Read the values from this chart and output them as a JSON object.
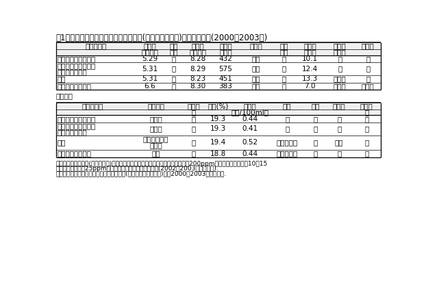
{
  "title": "表1　「オリエンタルスター」の育成地(広島県安芸津町)における特性(2000～2003年)",
  "t1_h1": [
    "品種・系統",
    "開花期",
    "花振",
    "収穫期",
    "果房重",
    "果房形",
    "着粒",
    "果粒重",
    "はく皮",
    "裂果性"
  ],
  "t1_h2": [
    "",
    "（月日）",
    "るい",
    "（月日）",
    "（ｇ）",
    "",
    "密度",
    "（ｇ）",
    "の難易",
    ""
  ],
  "t1_data": [
    [
      "オリエンタルスター",
      "5.29",
      "少",
      "8.28",
      "432",
      "円筒",
      "中",
      "10.1",
      "中",
      "無"
    ],
    [
      "オリエンタルスター\n（無核化栽培）",
      "5.31",
      "少",
      "8.29",
      "575",
      "円筒",
      "中",
      "12.4",
      "中",
      "無"
    ],
    [
      "巨峰",
      "5.31",
      "中",
      "8.23",
      "451",
      "円筒",
      "密",
      "13.3",
      "易～中",
      "無"
    ],
    [
      "ネオ・マスカット",
      "6.6",
      "少",
      "8.30",
      "383",
      "円筒",
      "密",
      "7.0",
      "易～中",
      "無～中"
    ]
  ],
  "t1_col_widths": [
    110,
    38,
    28,
    38,
    38,
    45,
    32,
    40,
    42,
    35
  ],
  "t2_label": "（続き）",
  "t2_h1": [
    "品種・系統",
    "果肉特性",
    "果肉硬",
    "糖度(%)",
    "酸含量",
    "香気",
    "渋み",
    "脱粒性",
    "日持ち"
  ],
  "t2_h2": [
    "",
    "",
    "度",
    "",
    "（ｇ/100ml）",
    "",
    "",
    "",
    "性"
  ],
  "t2_data": [
    [
      "オリエンタルスター",
      "崩壊性",
      "硬",
      "19.3",
      "0.44",
      "無",
      "無",
      "中",
      "中"
    ],
    [
      "オリエンタルスター\n（無核化栽培）",
      "崩壊性",
      "硬",
      "19.3",
      "0.41",
      "無",
      "無",
      "中",
      "中"
    ],
    [
      "巨峰",
      "崩壊性と塊状\nの中間",
      "中",
      "19.4",
      "0.52",
      "フォクシー",
      "無",
      "容易",
      "短"
    ],
    [
      "ネオ・マスカット",
      "塊状",
      "中",
      "18.8",
      "0.44",
      "マスカット",
      "無",
      "中",
      "中"
    ]
  ],
  "t2_col_widths": [
    110,
    78,
    34,
    40,
    55,
    55,
    30,
    40,
    42
  ],
  "footnote1": "オリエンタルスター(無核化栽培)は短梢剪定樹で、開花前にストレプトマイシン200ppm散布、満開時と満開10～15",
  "footnote2": "日後にジベレリン25ppmで花（果）房浸漬処理を行った(2002～2003年の平均値).",
  "footnote3": "その他はいずれも長梢剪定による有核栽培(ジベレリン等無処理)で、2000～2003年の平均値.",
  "bg_color": "#ffffff",
  "header_bg": "#f0f0f0",
  "font_size": 7.5,
  "title_fontsize": 8.5,
  "note_fontsize": 6.5
}
